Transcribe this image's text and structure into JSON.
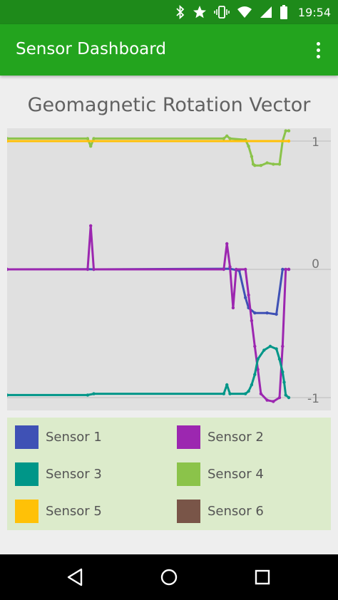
{
  "status_bar": {
    "time": "19:54",
    "icons": [
      "bluetooth-icon",
      "star-icon",
      "vibrate-icon",
      "wifi-icon",
      "signal-icon",
      "battery-icon"
    ]
  },
  "app_bar": {
    "title": "Sensor Dashboard",
    "menu_icon": "overflow-menu-icon"
  },
  "chart_data": {
    "type": "line",
    "title": "Geomagnetic Rotation Vector",
    "xlabel": "",
    "ylabel": "",
    "ylim": [
      -1.1,
      1.1
    ],
    "y_ticks": [
      {
        "value": 1,
        "label": "1"
      },
      {
        "value": 0,
        "label": "0"
      },
      {
        "value": -1,
        "label": "-1"
      }
    ],
    "grid": true,
    "legend": "bottom",
    "xlim": [
      0,
      100
    ],
    "series": [
      {
        "name": "Sensor 1",
        "color": "#3F51B5",
        "points": [
          [
            0,
            0
          ],
          [
            26,
            0.001
          ],
          [
            28,
            0
          ],
          [
            72,
            0.005
          ],
          [
            75,
            -0.01
          ],
          [
            77,
            -0.22
          ],
          [
            78,
            -0.3
          ],
          [
            80,
            -0.34
          ],
          [
            84,
            -0.34
          ],
          [
            87,
            -0.35
          ],
          [
            89,
            0
          ],
          [
            91,
            0
          ]
        ]
      },
      {
        "name": "Sensor 2",
        "color": "#9C27B0",
        "points": [
          [
            0,
            0
          ],
          [
            26,
            0
          ],
          [
            27,
            0.34
          ],
          [
            28,
            0
          ],
          [
            70,
            0
          ],
          [
            71,
            0.2
          ],
          [
            72,
            0.02
          ],
          [
            73,
            -0.3
          ],
          [
            74,
            0
          ],
          [
            77,
            0
          ],
          [
            78,
            -0.2
          ],
          [
            79,
            -0.4
          ],
          [
            80,
            -0.6
          ],
          [
            81,
            -0.78
          ],
          [
            82,
            -0.97
          ],
          [
            84,
            -1.02
          ],
          [
            86,
            -1.03
          ],
          [
            88,
            -1.0
          ],
          [
            89,
            -0.6
          ],
          [
            90,
            0
          ],
          [
            91,
            0
          ]
        ]
      },
      {
        "name": "Sensor 3",
        "color": "#009688",
        "points": [
          [
            0,
            -0.98
          ],
          [
            26,
            -0.98
          ],
          [
            28,
            -0.97
          ],
          [
            70,
            -0.97
          ],
          [
            71,
            -0.9
          ],
          [
            72,
            -0.97
          ],
          [
            77,
            -0.97
          ],
          [
            78,
            -0.95
          ],
          [
            79,
            -0.9
          ],
          [
            80,
            -0.82
          ],
          [
            81,
            -0.7
          ],
          [
            83,
            -0.63
          ],
          [
            85,
            -0.6
          ],
          [
            87,
            -0.62
          ],
          [
            88,
            -0.7
          ],
          [
            89,
            -0.8
          ],
          [
            89.5,
            -0.88
          ],
          [
            90,
            -0.98
          ],
          [
            91,
            -1.0
          ]
        ]
      },
      {
        "name": "Sensor 4",
        "color": "#8BC34A",
        "points": [
          [
            0,
            1.02
          ],
          [
            26,
            1.02
          ],
          [
            27,
            0.96
          ],
          [
            28,
            1.02
          ],
          [
            70,
            1.02
          ],
          [
            71,
            1.04
          ],
          [
            72,
            1.02
          ],
          [
            77,
            1.01
          ],
          [
            78,
            0.96
          ],
          [
            79,
            0.88
          ],
          [
            79.5,
            0.82
          ],
          [
            80,
            0.81
          ],
          [
            82,
            0.81
          ],
          [
            84,
            0.83
          ],
          [
            86,
            0.82
          ],
          [
            88,
            0.82
          ],
          [
            89,
            1.0
          ],
          [
            90,
            1.08
          ],
          [
            91,
            1.08
          ]
        ]
      },
      {
        "name": "Sensor 5",
        "color": "#FFC107",
        "points": [
          [
            0,
            1.0
          ],
          [
            91,
            1.0
          ]
        ]
      },
      {
        "name": "Sensor 6",
        "color": "#795548",
        "points": []
      }
    ]
  }
}
